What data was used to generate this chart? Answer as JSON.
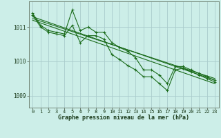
{
  "title": "Graphe pression niveau de la mer (hPa)",
  "bg_color": "#cceee8",
  "grid_color": "#aacccc",
  "line_color": "#1a6b1a",
  "marker_color": "#1a6b1a",
  "xlim": [
    -0.5,
    23.5
  ],
  "ylim": [
    1008.65,
    1011.75
  ],
  "xticks": [
    0,
    1,
    2,
    3,
    4,
    5,
    6,
    7,
    8,
    9,
    10,
    11,
    12,
    13,
    14,
    15,
    16,
    17,
    18,
    19,
    20,
    21,
    22,
    23
  ],
  "yticks": [
    1009,
    1010,
    1011
  ],
  "series1": [
    1011.4,
    1011.05,
    1010.9,
    1010.85,
    1010.8,
    1011.5,
    1010.9,
    1011.0,
    1010.85,
    1010.85,
    1010.55,
    1010.4,
    1010.3,
    1010.1,
    1009.75,
    1009.75,
    1009.6,
    1009.35,
    1009.85,
    1009.85,
    1009.75,
    1009.65,
    1009.55,
    1009.45
  ],
  "series2": [
    1011.35,
    1011.0,
    1010.85,
    1010.8,
    1010.75,
    1011.05,
    1010.55,
    1010.75,
    1010.75,
    1010.65,
    1010.2,
    1010.05,
    1009.88,
    1009.75,
    1009.55,
    1009.55,
    1009.35,
    1009.15,
    1009.75,
    1009.8,
    1009.7,
    1009.6,
    1009.5,
    1009.4
  ],
  "trend1_x": [
    0,
    23
  ],
  "trend1_y": [
    1011.3,
    1009.45
  ],
  "trend2_x": [
    0,
    23
  ],
  "trend2_y": [
    1011.2,
    1009.35
  ],
  "trend3_x": [
    0,
    23
  ],
  "trend3_y": [
    1011.25,
    1009.5
  ]
}
